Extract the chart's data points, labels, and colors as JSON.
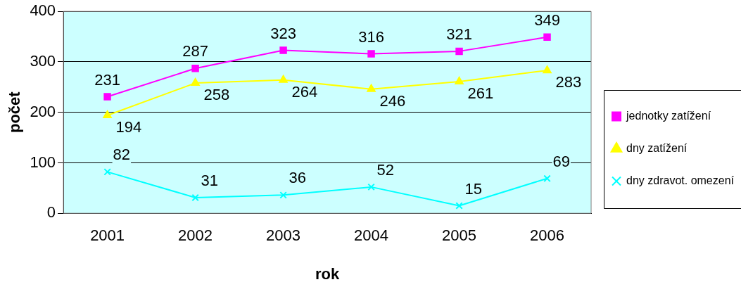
{
  "chart_data": {
    "type": "line",
    "xlabel": "rok",
    "ylabel": "počet",
    "categories": [
      "2001",
      "2002",
      "2003",
      "2004",
      "2005",
      "2006"
    ],
    "series": [
      {
        "name": "jednotky zatížení",
        "color": "#ff00ff",
        "marker": "square",
        "values": [
          231,
          287,
          323,
          316,
          321,
          349
        ]
      },
      {
        "name": "dny zatížení",
        "color": "#ffff00",
        "marker": "triangle",
        "values": [
          194,
          258,
          264,
          246,
          261,
          283
        ]
      },
      {
        "name": "dny zdravot. omezení",
        "color": "#00ffff",
        "marker": "cross",
        "values": [
          82,
          31,
          36,
          52,
          15,
          69
        ]
      }
    ],
    "ylim": [
      0,
      400
    ],
    "yticks": [
      0,
      100,
      200,
      300,
      400
    ],
    "grid": "y",
    "legend": "right",
    "data_labels": true
  }
}
